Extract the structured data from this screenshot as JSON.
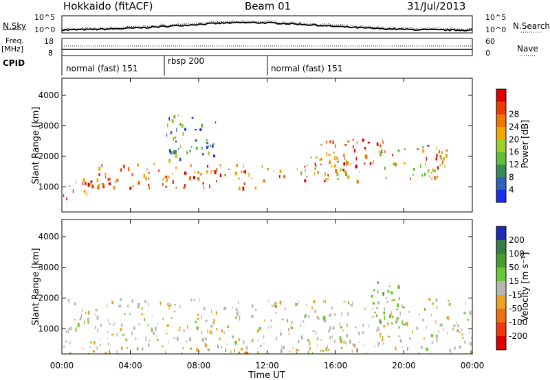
{
  "header": {
    "station": "Hokkaido (fitACF)",
    "beam": "Beam 01",
    "date": "31/Jul/2013"
  },
  "noise_panel": {
    "left_label": "N.Sky",
    "left_ticks": [
      "10^5",
      "10^0"
    ],
    "right_ticks": [
      "10^5",
      "10^0"
    ],
    "right_label": "N.Search"
  },
  "freq_panel": {
    "left_label_line1": "Freq.",
    "left_label_line2": "[MHz]",
    "left_ticks": [
      "18",
      "8"
    ],
    "right_ticks": [
      "60",
      "0"
    ],
    "right_label": "Nave"
  },
  "cpid_panel": {
    "label": "CPID",
    "modes": [
      {
        "name": "normal (fast) 151",
        "start": 0,
        "end": 6
      },
      {
        "name": "rbsp 200",
        "start": 6,
        "end": 12
      },
      {
        "name": "normal (fast) 151",
        "start": 12,
        "end": 24
      }
    ]
  },
  "x_axis": {
    "label": "Time UT",
    "ticks": [
      "00:00",
      "04:00",
      "08:00",
      "12:00",
      "16:00",
      "20:00",
      "00:00"
    ]
  },
  "chart_data": [
    {
      "type": "heatmap",
      "panel": "power",
      "ylabel": "Slant Range [km]",
      "ylim": [
        180,
        4560
      ],
      "yticks": [
        "1000",
        "2000",
        "3000",
        "4000"
      ],
      "ytick_values": [
        1000,
        2000,
        3000,
        4000
      ],
      "xlim_hours": [
        0,
        24
      ],
      "colorbar_label": "Power [dB]",
      "colorbar_ticks": [
        "4",
        "8",
        "12",
        "16",
        "20",
        "24",
        "28"
      ],
      "colorbar_colors": [
        "#1a2ef0",
        "#2f62b8",
        "#3a8a58",
        "#62be3a",
        "#9ed028",
        "#f0a800",
        "#f07800",
        "#ec3c00",
        "#e00000"
      ],
      "regions": [
        {
          "t0": 0.0,
          "t1": 2.0,
          "r0": 600,
          "r1": 1300,
          "level": "high"
        },
        {
          "t0": 2.0,
          "t1": 12.0,
          "r0": 1000,
          "r1": 1800,
          "level": "high"
        },
        {
          "t0": 12.0,
          "t1": 17.5,
          "r0": 1200,
          "r1": 2000,
          "level": "mid"
        },
        {
          "t0": 15.0,
          "t1": 19.5,
          "r0": 1800,
          "r1": 2600,
          "level": "high"
        },
        {
          "t0": 6.0,
          "t1": 9.0,
          "r0": 1900,
          "r1": 3400,
          "level": "low"
        },
        {
          "t0": 18.5,
          "t1": 22.5,
          "r0": 1300,
          "r1": 2400,
          "level": "mid"
        }
      ]
    },
    {
      "type": "heatmap",
      "panel": "velocity",
      "ylabel": "Slant Range [km]",
      "ylim": [
        180,
        4560
      ],
      "yticks": [
        "1000",
        "2000",
        "3000",
        "4000"
      ],
      "ytick_values": [
        1000,
        2000,
        3000,
        4000
      ],
      "xlim_hours": [
        0,
        24
      ],
      "colorbar_label": "Velocity [m s^-1]",
      "colorbar_ticks": [
        "200",
        "100",
        "50",
        "15",
        "-15",
        "-50",
        "-100",
        "-200"
      ],
      "colorbar_colors": [
        "#1c2db4",
        "#3a7a44",
        "#4a9c30",
        "#66c832",
        "#b8b8b0",
        "#f0a020",
        "#f07010",
        "#f03810",
        "#e00000"
      ],
      "regions": [
        {
          "t0": 0.0,
          "t1": 24.0,
          "r0": 400,
          "r1": 2000,
          "level": "near-zero"
        },
        {
          "t0": 18.0,
          "t1": 20.0,
          "r0": 1000,
          "r1": 2600,
          "level": "positive"
        },
        {
          "t0": 0.0,
          "t1": 24.0,
          "r0": 180,
          "r1": 400,
          "level": "negative"
        }
      ]
    }
  ]
}
